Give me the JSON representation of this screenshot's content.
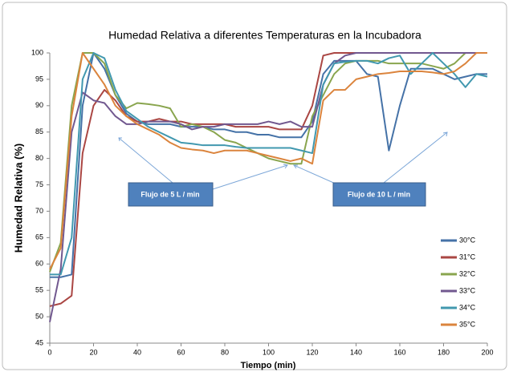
{
  "chart_data": {
    "type": "line",
    "title": "Humedad Relativa a diferentes Temperaturas en la Incubadora",
    "x_label": "Tiempo (min)",
    "y_label": "Humedad Relativa (%)",
    "x": [
      0,
      5,
      10,
      15,
      20,
      25,
      30,
      35,
      40,
      45,
      50,
      55,
      60,
      65,
      70,
      75,
      80,
      85,
      90,
      95,
      100,
      105,
      110,
      115,
      120,
      125,
      130,
      135,
      140,
      145,
      150,
      155,
      160,
      165,
      170,
      175,
      180,
      185,
      190,
      195,
      200
    ],
    "series": [
      {
        "name": "30°C",
        "color": "#4572a7",
        "values": [
          57.5,
          57.5,
          58,
          90,
          100,
          97,
          92,
          88.5,
          87,
          86.5,
          86.5,
          86.5,
          86,
          86,
          86,
          85.5,
          85.5,
          85,
          85,
          84.5,
          84.5,
          84,
          84,
          84,
          87,
          96,
          98.5,
          98.5,
          98.5,
          96,
          95.5,
          81.5,
          90,
          97,
          97,
          97,
          96,
          95,
          95.5,
          96,
          96
        ]
      },
      {
        "name": "31°C",
        "color": "#aa4643",
        "values": [
          52,
          52.5,
          54,
          81,
          90,
          93,
          91,
          88,
          87,
          87,
          87.5,
          87,
          87,
          86.5,
          86.5,
          86.5,
          86.5,
          86,
          86,
          86,
          86,
          85.5,
          85.5,
          85.5,
          90,
          99.5,
          100,
          100,
          100,
          100,
          100,
          100,
          100,
          100,
          100,
          100,
          100,
          100,
          100,
          100,
          100
        ]
      },
      {
        "name": "32°C",
        "color": "#89a54e",
        "values": [
          58.5,
          64,
          90,
          100,
          100,
          98,
          92,
          89.5,
          90.5,
          90.3,
          90,
          89.5,
          86,
          86.5,
          86,
          85,
          83.5,
          83,
          82,
          81,
          80,
          79.5,
          79,
          79,
          88,
          92,
          96,
          98,
          98.5,
          98.5,
          98.5,
          98,
          98,
          98,
          98,
          97.5,
          97,
          98,
          100,
          100,
          100
        ]
      },
      {
        "name": "33°C",
        "color": "#71588f",
        "values": [
          49,
          59,
          85,
          92.5,
          91,
          90.5,
          88,
          86.5,
          86.5,
          87,
          87,
          87,
          86.5,
          85.5,
          86,
          86,
          86.5,
          86.5,
          86.5,
          86.5,
          87,
          86.5,
          87,
          86,
          86,
          94,
          98,
          99.5,
          100,
          100,
          100,
          100,
          100,
          100,
          100,
          100,
          100,
          100,
          100,
          100,
          100
        ]
      },
      {
        "name": "34°C",
        "color": "#4198af",
        "values": [
          58,
          58,
          65,
          95,
          100,
          99,
          93,
          89,
          87.5,
          86,
          85,
          84,
          83,
          82.8,
          82.5,
          82.5,
          82.5,
          82.2,
          82,
          82,
          82,
          82,
          82,
          81.5,
          81,
          94,
          98,
          98.3,
          98.5,
          98.5,
          98,
          99,
          99.5,
          96,
          98,
          100,
          98,
          96,
          93.5,
          96,
          95.5
        ]
      },
      {
        "name": "35°C",
        "color": "#db843d",
        "values": [
          59,
          63,
          88,
          100,
          97,
          94,
          90,
          88,
          86.5,
          85.5,
          84.5,
          83,
          82,
          81.7,
          81.5,
          81,
          81.5,
          81.5,
          81.5,
          81,
          80.5,
          80,
          79.5,
          80,
          79,
          91,
          93,
          93,
          95,
          95.5,
          96,
          96.2,
          96.5,
          96.5,
          96.5,
          96.3,
          96,
          96.5,
          98,
          100,
          100
        ]
      }
    ],
    "xlim": [
      0,
      200
    ],
    "xticks": [
      0,
      20,
      40,
      60,
      80,
      100,
      120,
      140,
      160,
      180,
      200
    ],
    "ylim": [
      45,
      100
    ],
    "yticks": [
      45,
      50,
      55,
      60,
      65,
      70,
      75,
      80,
      85,
      90,
      95,
      100
    ],
    "grid": false,
    "legend": "right",
    "annotations": [
      "Flujo de  5 L / min",
      "Flujo de  10 L / min"
    ]
  }
}
